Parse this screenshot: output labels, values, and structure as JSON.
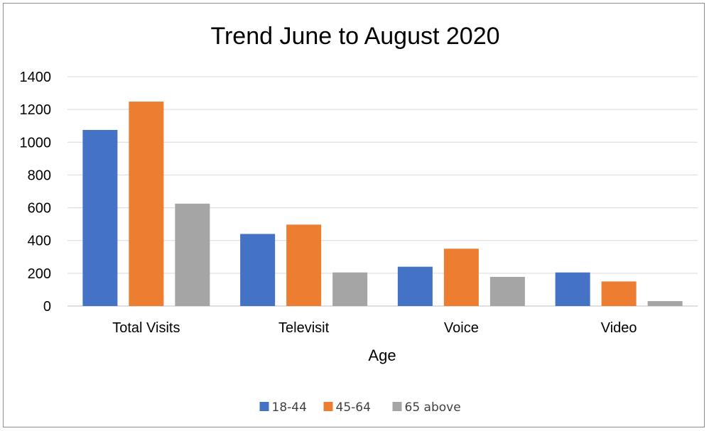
{
  "chart_data": {
    "type": "bar",
    "title": "Trend June to August 2020",
    "xlabel": "Age",
    "ylabel": "",
    "categories": [
      "Total Visits",
      "Televisit",
      "Voice",
      "Video"
    ],
    "series": [
      {
        "name": "18-44",
        "color": "#4472C4",
        "values": [
          1075,
          440,
          240,
          205
        ]
      },
      {
        "name": "45-64",
        "color": "#ED7D31",
        "values": [
          1248,
          497,
          350,
          150
        ]
      },
      {
        "name": "65 above",
        "color": "#A5A5A5",
        "values": [
          625,
          205,
          178,
          30
        ]
      }
    ],
    "ylim": [
      0,
      1400
    ],
    "yticks": [
      "0",
      "200",
      "400",
      "600",
      "800",
      "1000",
      "1200",
      "1400"
    ],
    "grid": true,
    "legend_position": "bottom"
  }
}
